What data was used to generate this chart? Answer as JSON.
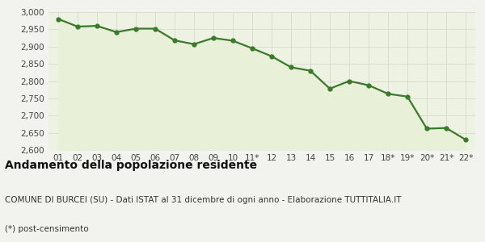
{
  "x_labels": [
    "01",
    "02",
    "03",
    "04",
    "05",
    "06",
    "07",
    "08",
    "09",
    "10",
    "11*",
    "12",
    "13",
    "14",
    "15",
    "16",
    "17",
    "18*",
    "19*",
    "20*",
    "21*",
    "22*"
  ],
  "y_values": [
    2980,
    2958,
    2960,
    2942,
    2952,
    2952,
    2918,
    2907,
    2925,
    2917,
    2895,
    2872,
    2840,
    2830,
    2778,
    2800,
    2788,
    2763,
    2755,
    2662,
    2664,
    2630
  ],
  "line_color": "#3a7a2a",
  "fill_color": "#e8f0d8",
  "marker": "o",
  "marker_size": 3.5,
  "line_width": 1.6,
  "ylim": [
    2600,
    3000
  ],
  "yticks": [
    2600,
    2650,
    2700,
    2750,
    2800,
    2850,
    2900,
    2950,
    3000
  ],
  "background_color": "#f2f2ee",
  "plot_bg_color": "#eef2e2",
  "grid_color": "#d4d4cc",
  "title_main": "Andamento della popolazione residente",
  "title_sub1": "COMUNE DI BURCEI (SU) - Dati ISTAT al 31 dicembre di ogni anno - Elaborazione TUTTITALIA.IT",
  "title_sub2": "(*) post-censimento",
  "title_main_fontsize": 10,
  "title_sub_fontsize": 7.5,
  "tick_fontsize": 7.5
}
